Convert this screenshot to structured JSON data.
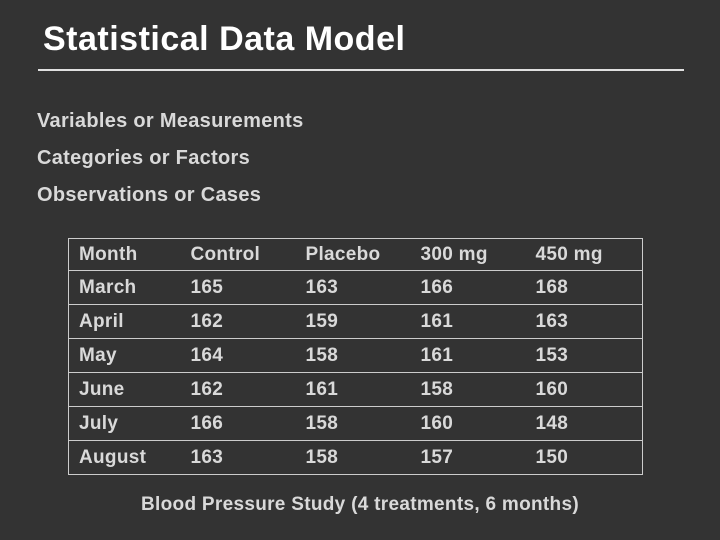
{
  "slide": {
    "title": "Statistical Data Model",
    "bullets": [
      "Variables or Measurements",
      "Categories or Factors",
      "Observations or Cases"
    ],
    "caption": "Blood Pressure Study (4 treatments, 6 months)"
  },
  "table": {
    "headers": [
      "Month",
      "Control",
      "Placebo",
      "300 mg",
      "450 mg"
    ],
    "rows": [
      [
        "March",
        "165",
        "163",
        "166",
        "168"
      ],
      [
        "April",
        "162",
        "159",
        "161",
        "163"
      ],
      [
        "May",
        "164",
        "158",
        "161",
        "153"
      ],
      [
        "June",
        "162",
        "161",
        "158",
        "160"
      ],
      [
        "July",
        "166",
        "158",
        "160",
        "148"
      ],
      [
        "August",
        "163",
        "158",
        "157",
        "150"
      ]
    ]
  },
  "colors": {
    "background": "#333333",
    "title_text": "#ffffff",
    "body_text": "#d9d9d9",
    "underline": "#e0e0e0",
    "table_border": "#cccccc"
  }
}
